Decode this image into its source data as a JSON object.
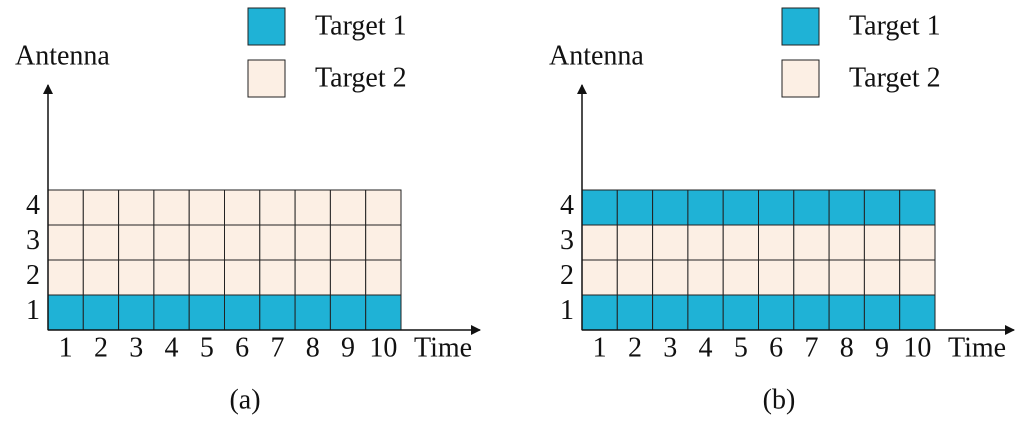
{
  "panels": [
    {
      "caption": "(a)",
      "y_axis_label": "Antenna",
      "x_axis_label": "Time",
      "legend": [
        {
          "label": "Target 1",
          "color": "#1fb2d6"
        },
        {
          "label": "Target 2",
          "color": "#fcefe4"
        }
      ],
      "time_labels": [
        "1",
        "2",
        "3",
        "4",
        "5",
        "6",
        "7",
        "8",
        "9",
        "10"
      ],
      "rows": [
        {
          "label": "4",
          "color": "#fcefe4"
        },
        {
          "label": "3",
          "color": "#fcefe4"
        },
        {
          "label": "2",
          "color": "#fcefe4"
        },
        {
          "label": "1",
          "color": "#1fb2d6"
        }
      ]
    },
    {
      "caption": "(b)",
      "y_axis_label": "Antenna",
      "x_axis_label": "Time",
      "legend": [
        {
          "label": "Target 1",
          "color": "#1fb2d6"
        },
        {
          "label": "Target 2",
          "color": "#fcefe4"
        }
      ],
      "time_labels": [
        "1",
        "2",
        "3",
        "4",
        "5",
        "6",
        "7",
        "8",
        "9",
        "10"
      ],
      "rows": [
        {
          "label": "4",
          "color": "#1fb2d6"
        },
        {
          "label": "3",
          "color": "#fcefe4"
        },
        {
          "label": "2",
          "color": "#fcefe4"
        },
        {
          "label": "1",
          "color": "#1fb2d6"
        }
      ]
    }
  ]
}
